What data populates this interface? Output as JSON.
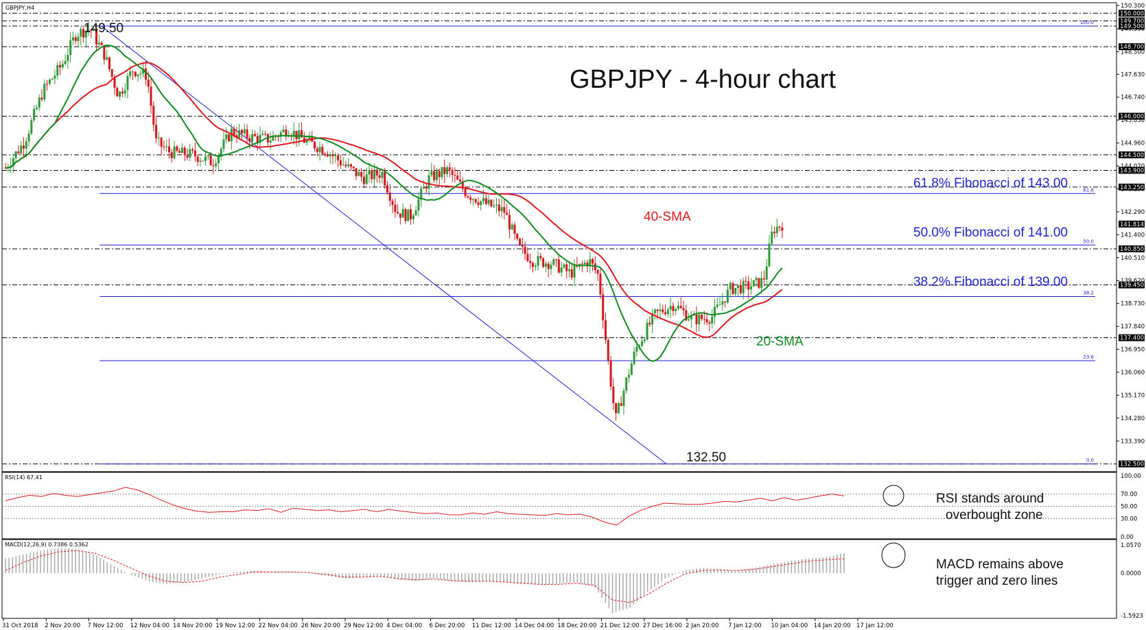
{
  "symbol_label": "GBPJPY,H4",
  "title": "GBPJPY - 4-hour chart",
  "colors": {
    "bull": "#2e9a35",
    "bear": "#d6151b",
    "sma20": "#0e8c1e",
    "sma40": "#e3181f",
    "fib": "#1f1fd6",
    "rsi": "#e3181f",
    "macd_signal": "#e3181f",
    "macd_hist": "#a9a9a9"
  },
  "annotations": {
    "peak_label": "149.50",
    "trough_label": "132.50",
    "sma40_label": "40-SMA",
    "sma20_label": "20-SMA",
    "fib618_text": "61.8% Fibonacci of 143.00",
    "fib500_text": "50.0% Fibonacci of 141.00",
    "fib382_text": "38.2% Fibonacci of 139.00",
    "rsi_note_line1": "RSI stands around",
    "rsi_note_line2": "overbought zone",
    "macd_note_line1": "MACD remains above",
    "macd_note_line2": "trigger and zero lines"
  },
  "rsi_panel": {
    "label": "RSI(14) 67.41",
    "ticks": [
      "100.00",
      "70.00",
      "50.00",
      "30.00",
      "0.00"
    ]
  },
  "macd_panel": {
    "label": "MACD(12,26,9) 0.7386 0.5362",
    "ticks": [
      "1.0570",
      "0.0000",
      "-1.5923"
    ]
  },
  "chart_data": [
    {
      "type": "candlestick",
      "title": "GBPJPY - 4-hour chart",
      "ylim": [
        132.2,
        150.3
      ],
      "y_ticks": [
        "150.300",
        "149.390",
        "148.500",
        "147.630",
        "146.740",
        "145.850",
        "144.960",
        "144.070",
        "143.180",
        "142.290",
        "141.400",
        "140.510",
        "139.620",
        "138.730",
        "137.840",
        "136.950",
        "136.060",
        "135.170",
        "134.280",
        "133.390"
      ],
      "price_flags": [
        "150.000",
        "149.700",
        "149.500",
        "148.700",
        "146.000",
        "144.500",
        "143.900",
        "143.250",
        "141.814",
        "140.850",
        "139.450",
        "137.400",
        "132.500"
      ],
      "x_labels": [
        "31 Oct 2018",
        "2 Nov 20:00",
        "7 Nov 12:00",
        "12 Nov 04:00",
        "14 Nov 20:00",
        "19 Nov 12:00",
        "22 Nov 04:00",
        "26 Nov 20:00",
        "29 Nov 12:00",
        "4 Dec 04:00",
        "6 Dec 20:00",
        "11 Dec 12:00",
        "14 Dec 04:00",
        "18 Dec 20:00",
        "21 Dec 12:00",
        "27 Dec 16:00",
        "2 Jan 20:00",
        "7 Jan 12:00",
        "10 Jan 04:00",
        "14 Jan 20:00",
        "17 Jan 12:00"
      ],
      "horizontal_levels": [
        150.0,
        149.7,
        149.5,
        148.7,
        146.0,
        144.5,
        143.9,
        143.25,
        140.85,
        139.45,
        137.4,
        132.5
      ],
      "fibonacci": {
        "high": 149.5,
        "low": 132.5,
        "levels": [
          {
            "ratio_label": "100.0",
            "price": 149.5
          },
          {
            "ratio_label": "61.8",
            "price": 143.0
          },
          {
            "ratio_label": "50.0",
            "price": 141.0
          },
          {
            "ratio_label": "38.2",
            "price": 139.0
          },
          {
            "ratio_label": "23.6",
            "price": 136.51
          },
          {
            "ratio_label": "0.0",
            "price": 132.5
          }
        ]
      },
      "last_price": 141.814,
      "trend_line": {
        "from": [
          0,
          149.5
        ],
        "to": [
          1,
          132.5
        ]
      },
      "price_path": [
        {
          "x": 0.0,
          "close": 144.0
        },
        {
          "x": 0.02,
          "close": 145.0
        },
        {
          "x": 0.04,
          "close": 147.0
        },
        {
          "x": 0.06,
          "close": 148.0
        },
        {
          "x": 0.075,
          "close": 149.2
        },
        {
          "x": 0.09,
          "close": 149.4
        },
        {
          "x": 0.105,
          "close": 148.4
        },
        {
          "x": 0.12,
          "close": 146.8
        },
        {
          "x": 0.135,
          "close": 147.8
        },
        {
          "x": 0.15,
          "close": 147.6
        },
        {
          "x": 0.16,
          "close": 145.0
        },
        {
          "x": 0.175,
          "close": 144.6
        },
        {
          "x": 0.2,
          "close": 144.5
        },
        {
          "x": 0.22,
          "close": 144.2
        },
        {
          "x": 0.24,
          "close": 145.4
        },
        {
          "x": 0.26,
          "close": 145.2
        },
        {
          "x": 0.28,
          "close": 145.1
        },
        {
          "x": 0.3,
          "close": 145.5
        },
        {
          "x": 0.32,
          "close": 145.0
        },
        {
          "x": 0.34,
          "close": 144.7
        },
        {
          "x": 0.36,
          "close": 144.1
        },
        {
          "x": 0.38,
          "close": 143.6
        },
        {
          "x": 0.4,
          "close": 143.8
        },
        {
          "x": 0.415,
          "close": 142.3
        },
        {
          "x": 0.43,
          "close": 142.1
        },
        {
          "x": 0.45,
          "close": 143.6
        },
        {
          "x": 0.47,
          "close": 143.9
        },
        {
          "x": 0.49,
          "close": 143.0
        },
        {
          "x": 0.51,
          "close": 142.6
        },
        {
          "x": 0.53,
          "close": 142.3
        },
        {
          "x": 0.545,
          "close": 140.9
        },
        {
          "x": 0.56,
          "close": 140.4
        },
        {
          "x": 0.58,
          "close": 140.3
        },
        {
          "x": 0.6,
          "close": 139.9
        },
        {
          "x": 0.62,
          "close": 140.4
        },
        {
          "x": 0.63,
          "close": 139.8
        },
        {
          "x": 0.64,
          "close": 136.5
        },
        {
          "x": 0.648,
          "close": 134.2
        },
        {
          "x": 0.66,
          "close": 135.8
        },
        {
          "x": 0.67,
          "close": 137.0
        },
        {
          "x": 0.69,
          "close": 138.3
        },
        {
          "x": 0.71,
          "close": 138.7
        },
        {
          "x": 0.73,
          "close": 138.1
        },
        {
          "x": 0.75,
          "close": 138.2
        },
        {
          "x": 0.77,
          "close": 139.3
        },
        {
          "x": 0.79,
          "close": 139.4
        },
        {
          "x": 0.805,
          "close": 139.6
        },
        {
          "x": 0.815,
          "close": 141.6
        },
        {
          "x": 0.825,
          "close": 141.8
        }
      ],
      "series": [
        {
          "name": "40-SMA"
        },
        {
          "name": "20-SMA"
        }
      ]
    },
    {
      "type": "line",
      "title": "RSI(14) 67.41",
      "ylim": [
        0,
        100
      ],
      "values_approx": [
        59,
        64,
        68,
        66,
        71,
        68,
        66,
        69,
        72,
        75,
        81,
        77,
        69,
        60,
        52,
        46,
        42,
        40,
        41,
        41,
        44,
        43,
        46,
        40,
        47,
        45,
        43,
        44,
        41,
        43,
        45,
        41,
        45,
        42,
        40,
        38,
        39,
        36,
        36,
        39,
        37,
        41,
        38,
        37,
        36,
        35,
        38,
        36,
        37,
        32,
        24,
        19,
        33,
        43,
        50,
        55,
        54,
        53,
        53,
        55,
        58,
        57,
        60,
        63,
        59,
        64,
        60,
        63,
        67,
        70,
        67
      ]
    },
    {
      "type": "bar",
      "title": "MACD(12,26,9) 0.7386 0.5362",
      "ylim": [
        -1.5923,
        1.057
      ],
      "histogram_approx": [
        0.55,
        0.7,
        0.85,
        0.95,
        0.9,
        0.7,
        0.3,
        -0.05,
        -0.3,
        -0.4,
        -0.35,
        -0.2,
        -0.05,
        0.05,
        0.1,
        0.05,
        0.05,
        0.0,
        -0.1,
        -0.2,
        -0.15,
        -0.1,
        -0.25,
        -0.3,
        -0.2,
        -0.3,
        -0.35,
        -0.3,
        -0.35,
        -0.4,
        -0.45,
        -0.4,
        -0.35,
        -0.5,
        -1.5,
        -1.3,
        -0.7,
        -0.2,
        0.1,
        0.2,
        0.15,
        0.1,
        0.2,
        0.35,
        0.45,
        0.55,
        0.6,
        0.75
      ],
      "signal_approx": [
        0.1,
        0.4,
        0.65,
        0.8,
        0.85,
        0.75,
        0.5,
        0.2,
        -0.1,
        -0.3,
        -0.35,
        -0.3,
        -0.15,
        -0.05,
        0.05,
        0.05,
        0.05,
        0.02,
        -0.05,
        -0.15,
        -0.15,
        -0.12,
        -0.2,
        -0.25,
        -0.22,
        -0.28,
        -0.3,
        -0.3,
        -0.33,
        -0.38,
        -0.42,
        -0.42,
        -0.38,
        -0.45,
        -1.0,
        -1.1,
        -0.8,
        -0.4,
        -0.05,
        0.1,
        0.12,
        0.1,
        0.15,
        0.25,
        0.35,
        0.45,
        0.5,
        0.54
      ]
    }
  ]
}
